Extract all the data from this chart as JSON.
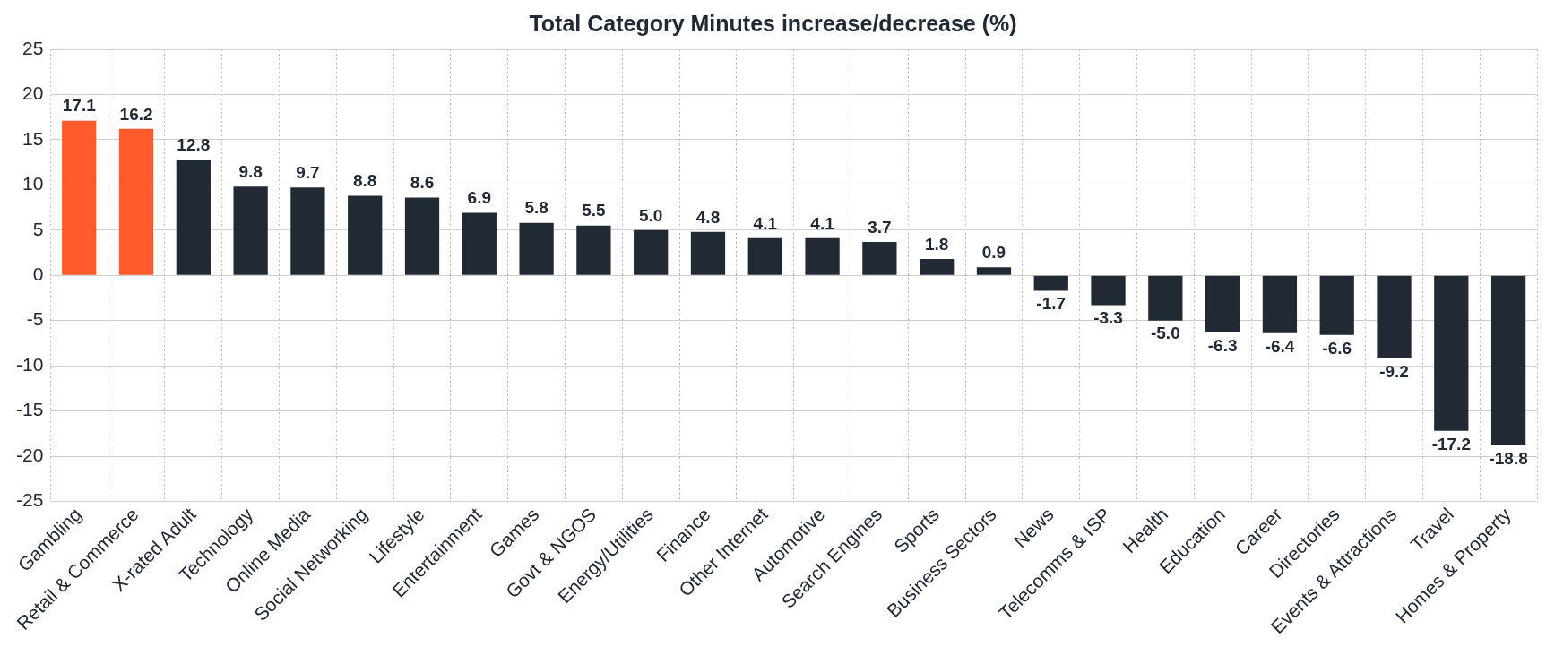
{
  "chart_data": {
    "type": "bar",
    "title": "Total Category Minutes increase/decrease (%)",
    "categories": [
      "Gambling",
      "Retail & Commerce",
      "X-rated Adult",
      "Technology",
      "Online Media",
      "Social Networking",
      "Lifestyle",
      "Entertainment",
      "Games",
      "Govt & NGOS",
      "Energy/Utilities",
      "Finance",
      "Other Internet",
      "Automotive",
      "Search Engines",
      "Sports",
      "Business Sectors",
      "News",
      "Telecomms & ISP",
      "Health",
      "Education",
      "Career",
      "Directories",
      "Events & Attractions",
      "Travel",
      "Homes & Property"
    ],
    "values": [
      17.1,
      16.2,
      12.8,
      9.8,
      9.7,
      8.8,
      8.6,
      6.9,
      5.8,
      5.5,
      5.0,
      4.8,
      4.1,
      4.1,
      3.7,
      1.8,
      0.9,
      -1.7,
      -3.3,
      -5.0,
      -6.3,
      -6.4,
      -6.6,
      -9.2,
      -17.2,
      -18.8
    ],
    "colors": [
      "#ff5a2c",
      "#ff5a2c",
      "#212934",
      "#212934",
      "#212934",
      "#212934",
      "#212934",
      "#212934",
      "#212934",
      "#212934",
      "#212934",
      "#212934",
      "#212934",
      "#212934",
      "#212934",
      "#212934",
      "#212934",
      "#212934",
      "#212934",
      "#212934",
      "#212934",
      "#212934",
      "#212934",
      "#212934",
      "#212934",
      "#212934"
    ],
    "value_labels": [
      "17.1",
      "16.2",
      "12.8",
      "9.8",
      "9.7",
      "8.8",
      "8.6",
      "6.9",
      "5.8",
      "5.5",
      "5.0",
      "4.8",
      "4.1",
      "4.1",
      "3.7",
      "1.8",
      "0.9",
      "-1.7",
      "-3.3",
      "-5.0",
      "-6.3",
      "-6.4",
      "-6.6",
      "-9.2",
      "-17.2",
      "-18.8"
    ],
    "ylim": [
      -25,
      25
    ],
    "yticks": [
      -25,
      -20,
      -15,
      -10,
      -5,
      0,
      5,
      10,
      15,
      20,
      25
    ],
    "grid": true,
    "legend": false
  }
}
